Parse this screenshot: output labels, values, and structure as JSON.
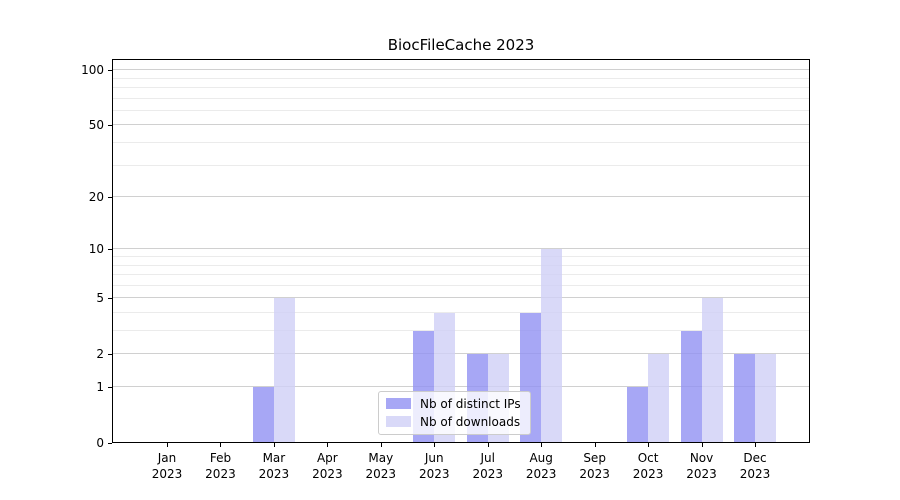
{
  "header": {
    "title": "BiocFileCache 2023"
  },
  "chart_data": {
    "type": "bar",
    "title": "BiocFileCache 2023",
    "categories": [
      "Jan",
      "Feb",
      "Mar",
      "Apr",
      "May",
      "Jun",
      "Jul",
      "Aug",
      "Sep",
      "Oct",
      "Nov",
      "Dec"
    ],
    "x_tick_line2": "2023",
    "series": [
      {
        "name": "Nb of distinct IPs",
        "color": "rgba(145,145,242,0.8)",
        "values": [
          0,
          0,
          1,
          0,
          0,
          3,
          2,
          4,
          0,
          1,
          3,
          2
        ]
      },
      {
        "name": "Nb of downloads",
        "color": "rgba(208,208,246,0.8)",
        "values": [
          0,
          0,
          5,
          0,
          0,
          4,
          2,
          10,
          0,
          2,
          5,
          2
        ]
      }
    ],
    "xlabel": "",
    "ylabel": "",
    "y_scale": "log10(1+y)",
    "ylim": [
      0,
      115
    ],
    "y_major_ticks": [
      0,
      1,
      2,
      5,
      10,
      20,
      50,
      100
    ],
    "y_minor_gridlines": [
      3,
      4,
      6,
      7,
      8,
      9,
      30,
      40,
      60,
      70,
      80,
      90
    ],
    "grid": true,
    "legend": {
      "position": "lower center",
      "entries": [
        "Nb of distinct IPs",
        "Nb of downloads"
      ]
    }
  },
  "colors": {
    "background": "#ffffff",
    "bar_distinct_ips": "rgba(145,145,242,0.8)",
    "bar_downloads": "rgba(208,208,246,0.8)",
    "grid_major": "#d0d0d0",
    "grid_minor": "#ebebeb",
    "axis": "#000000",
    "legend_border": "#cccccc"
  }
}
